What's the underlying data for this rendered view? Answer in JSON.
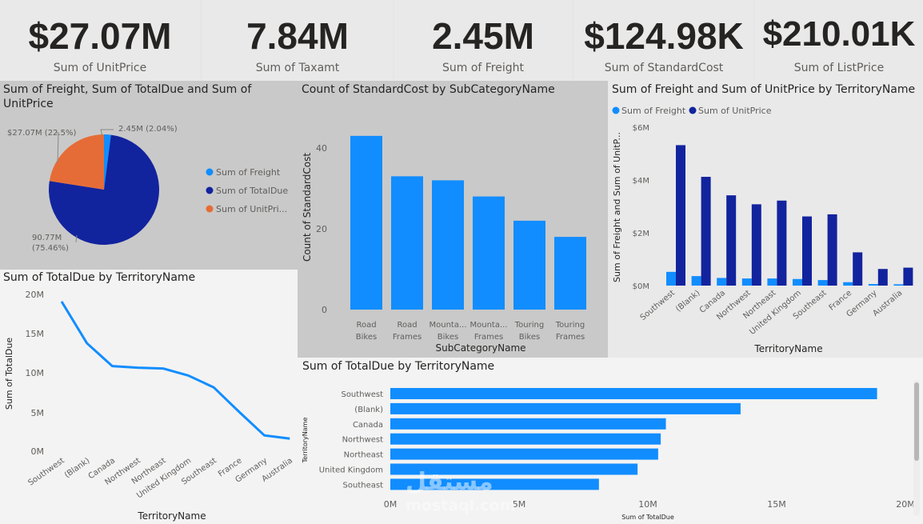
{
  "kpis": [
    {
      "value": "$27.07M",
      "label": "Sum of UnitPrice"
    },
    {
      "value": "7.84M",
      "label": "Sum of Taxamt"
    },
    {
      "value": "2.45M",
      "label": "Sum of Freight"
    },
    {
      "value": "$124.98K",
      "label": "Sum of StandardCost"
    },
    {
      "value": "$210.01K",
      "label": "Sum of ListPrice"
    }
  ],
  "pie": {
    "title": "Sum of Freight, Sum of TotalDue and Sum of UnitPrice",
    "legend": [
      "Sum of Freight",
      "Sum of TotalDue",
      "Sum of UnitPri..."
    ],
    "data_labels": [
      "2.45M (2.04%)",
      "90.77M (75.46%)",
      "$27.07M (22.5%)"
    ]
  },
  "bar": {
    "title": "Count of StandardCost by SubCategoryName",
    "xlabel": "SubCategoryName",
    "ylabel": "Count of StandardCost",
    "tick_labels": [
      "0",
      "20",
      "40"
    ],
    "category_lines": [
      [
        "Road",
        "Bikes"
      ],
      [
        "Road",
        "Frames"
      ],
      [
        "Mounta...",
        "Bikes"
      ],
      [
        "Mounta...",
        "Frames"
      ],
      [
        "Touring",
        "Bikes"
      ],
      [
        "Touring",
        "Frames"
      ]
    ]
  },
  "cluster": {
    "title": "Sum of Freight and Sum of UnitPrice by TerritoryName",
    "legend": [
      "Sum of Freight",
      "Sum of UnitPrice"
    ],
    "xlabel": "TerritoryName",
    "ylabel": "Sum of Freight and Sum of UnitP...",
    "tick_labels": [
      "$0M",
      "$2M",
      "$4M",
      "$6M"
    ]
  },
  "line": {
    "title": "Sum of TotalDue by TerritoryName",
    "xlabel": "TerritoryName",
    "ylabel": "Sum of TotalDue",
    "tick_labels": [
      "0M",
      "5M",
      "10M",
      "15M",
      "20M"
    ]
  },
  "hbar": {
    "title": "Sum of TotalDue by TerritoryName",
    "xlabel": "Sum of TotalDue",
    "ylabel": "TerritoryName",
    "tick_labels": [
      "0M",
      "5M",
      "10M",
      "15M",
      "20M"
    ]
  },
  "watermark": {
    "arabic": "مستقل",
    "latin": "mostaql.com"
  },
  "colors": {
    "light_blue": "#118dff",
    "dark_blue": "#12239e",
    "orange": "#e66c37",
    "line": "#118dff"
  },
  "chart_data": [
    {
      "type": "pie",
      "title": "Sum of Freight, Sum of TotalDue and Sum of UnitPrice",
      "categories": [
        "Sum of Freight",
        "Sum of TotalDue",
        "Sum of UnitPrice"
      ],
      "values": [
        2.45,
        90.77,
        27.07
      ],
      "unit": "M",
      "percent": [
        2.04,
        75.46,
        22.5
      ],
      "legend": "right"
    },
    {
      "type": "bar",
      "title": "Count of StandardCost by SubCategoryName",
      "categories": [
        "Road Bikes",
        "Road Frames",
        "Mountain Bikes",
        "Mountain Frames",
        "Touring Bikes",
        "Touring Frames"
      ],
      "values": [
        43,
        33,
        32,
        28,
        22,
        18
      ],
      "xlabel": "SubCategoryName",
      "ylabel": "Count of StandardCost",
      "ylim": [
        0,
        45
      ]
    },
    {
      "type": "bar",
      "title": "Sum of Freight and Sum of UnitPrice by TerritoryName",
      "categories": [
        "Southwest",
        "(Blank)",
        "Canada",
        "Northwest",
        "Northeast",
        "United Kingdom",
        "Southeast",
        "France",
        "Germany",
        "Australia"
      ],
      "series": [
        {
          "name": "Sum of Freight",
          "values": [
            0.52,
            0.36,
            0.29,
            0.27,
            0.27,
            0.25,
            0.21,
            0.13,
            0.06,
            0.05
          ]
        },
        {
          "name": "Sum of UnitPrice",
          "values": [
            5.32,
            4.12,
            3.42,
            3.08,
            3.22,
            2.62,
            2.7,
            1.26,
            0.63,
            0.68
          ]
        }
      ],
      "unit": "$M",
      "xlabel": "TerritoryName",
      "ylabel": "Sum of Freight and Sum of UnitP...",
      "ylim": [
        0,
        6
      ],
      "legend": "top-left"
    },
    {
      "type": "line",
      "title": "Sum of TotalDue by TerritoryName",
      "categories": [
        "Southwest",
        "(Blank)",
        "Canada",
        "Northwest",
        "Northeast",
        "United Kingdom",
        "Southeast",
        "France",
        "Germany",
        "Australia"
      ],
      "values": [
        19.0,
        13.7,
        10.8,
        10.6,
        10.5,
        9.6,
        8.1,
        5.0,
        2.0,
        1.6
      ],
      "unit": "M",
      "xlabel": "TerritoryName",
      "ylabel": "Sum of TotalDue",
      "ylim": [
        0,
        20
      ]
    },
    {
      "type": "bar",
      "orientation": "horizontal",
      "title": "Sum of TotalDue by TerritoryName",
      "categories": [
        "Southwest",
        "(Blank)",
        "Canada",
        "Northwest",
        "Northeast",
        "United Kingdom",
        "Southeast"
      ],
      "values": [
        18.9,
        13.6,
        10.7,
        10.5,
        10.4,
        9.6,
        8.1
      ],
      "unit": "M",
      "xlabel": "Sum of TotalDue",
      "ylabel": "TerritoryName",
      "xlim": [
        0,
        20
      ]
    }
  ]
}
